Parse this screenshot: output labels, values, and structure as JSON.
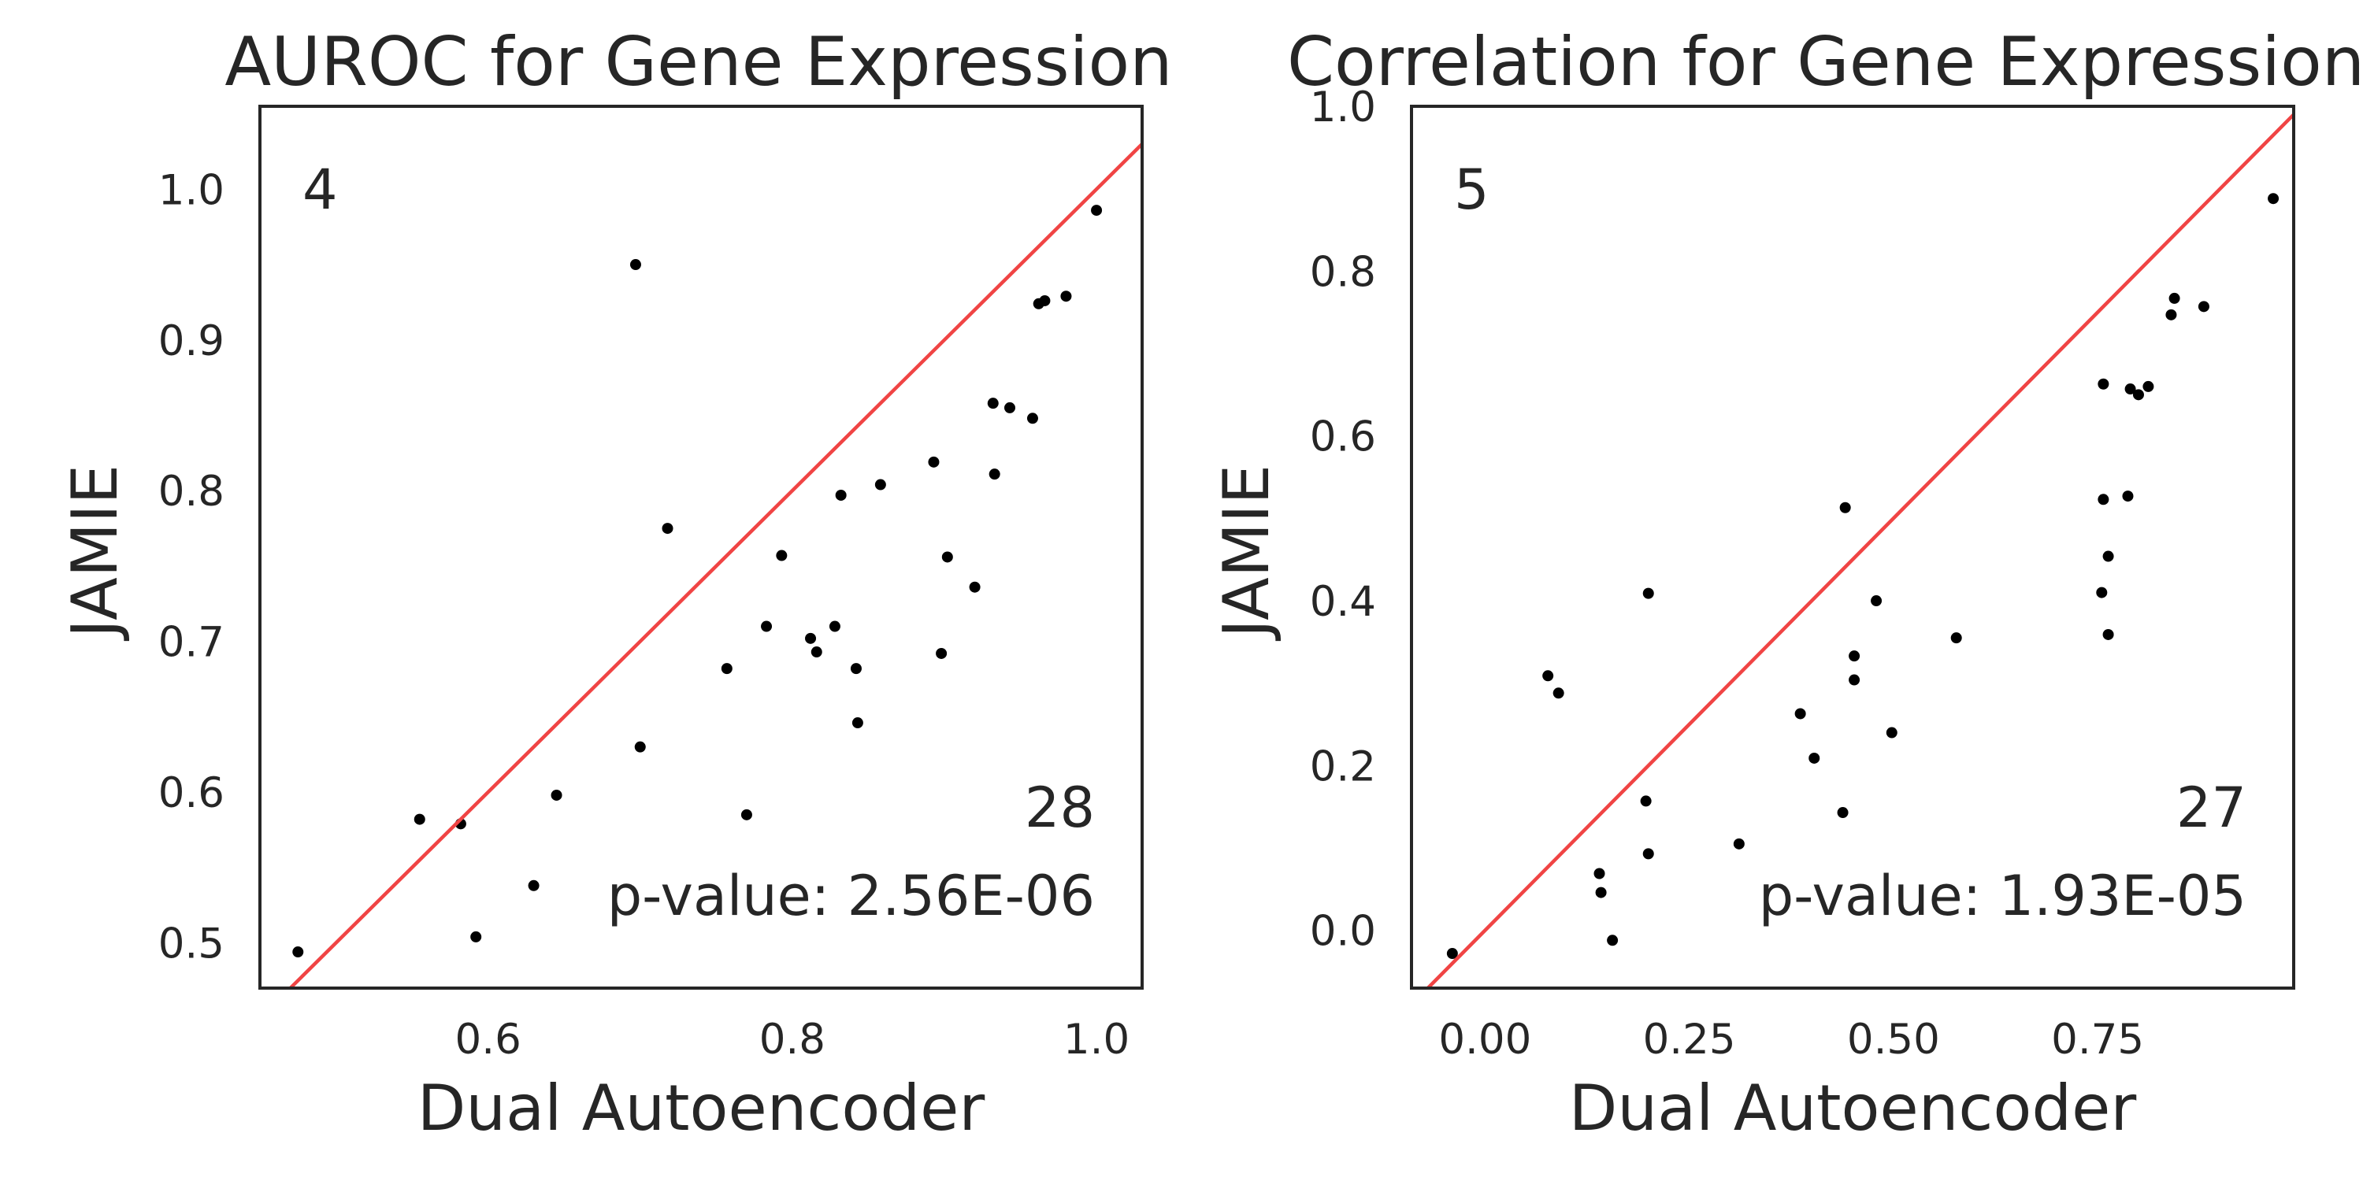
{
  "chart_data": [
    {
      "type": "scatter",
      "title": "AUROC for Gene Expression",
      "xlabel": "Dual Autoencoder",
      "ylabel": "JAMIE",
      "xlim": [
        0.45,
        1.03
      ],
      "ylim": [
        0.47,
        1.055
      ],
      "xticks": [
        0.6,
        0.8,
        1.0
      ],
      "xtick_labels": [
        "0.6",
        "0.8",
        "1.0"
      ],
      "yticks": [
        0.5,
        0.6,
        0.7,
        0.8,
        0.9,
        1.0
      ],
      "ytick_labels": [
        "0.5",
        "0.6",
        "0.7",
        "0.8",
        "0.9",
        "1.0"
      ],
      "diagonal_color": "#f04444",
      "point_color": "#000000",
      "grid": false,
      "count_above": "4",
      "count_below": "28",
      "p_value": "p-value: 2.56E-06",
      "points": [
        {
          "x": 0.475,
          "y": 0.494
        },
        {
          "x": 0.555,
          "y": 0.582
        },
        {
          "x": 0.582,
          "y": 0.579
        },
        {
          "x": 0.592,
          "y": 0.504
        },
        {
          "x": 0.63,
          "y": 0.538
        },
        {
          "x": 0.645,
          "y": 0.598
        },
        {
          "x": 0.697,
          "y": 0.95
        },
        {
          "x": 0.7,
          "y": 0.63
        },
        {
          "x": 0.718,
          "y": 0.775
        },
        {
          "x": 0.757,
          "y": 0.682
        },
        {
          "x": 0.77,
          "y": 0.585
        },
        {
          "x": 0.783,
          "y": 0.71
        },
        {
          "x": 0.793,
          "y": 0.757
        },
        {
          "x": 0.812,
          "y": 0.702
        },
        {
          "x": 0.816,
          "y": 0.693
        },
        {
          "x": 0.828,
          "y": 0.71
        },
        {
          "x": 0.832,
          "y": 0.797
        },
        {
          "x": 0.842,
          "y": 0.682
        },
        {
          "x": 0.843,
          "y": 0.646
        },
        {
          "x": 0.858,
          "y": 0.804
        },
        {
          "x": 0.893,
          "y": 0.819
        },
        {
          "x": 0.898,
          "y": 0.692
        },
        {
          "x": 0.902,
          "y": 0.756
        },
        {
          "x": 0.92,
          "y": 0.736
        },
        {
          "x": 0.932,
          "y": 0.858
        },
        {
          "x": 0.933,
          "y": 0.811
        },
        {
          "x": 0.943,
          "y": 0.855
        },
        {
          "x": 0.958,
          "y": 0.848
        },
        {
          "x": 0.962,
          "y": 0.924
        },
        {
          "x": 0.966,
          "y": 0.926
        },
        {
          "x": 0.98,
          "y": 0.929
        },
        {
          "x": 1.0,
          "y": 0.986
        }
      ]
    },
    {
      "type": "scatter",
      "title": "Correlation for Gene Expression",
      "xlabel": "Dual Autoencoder",
      "ylabel": "JAMIE",
      "xlim": [
        -0.09,
        0.99
      ],
      "ylim": [
        -0.07,
        1.0
      ],
      "xticks": [
        0.0,
        0.25,
        0.5,
        0.75
      ],
      "xtick_labels": [
        "0.00",
        "0.25",
        "0.50",
        "0.75"
      ],
      "yticks": [
        0.0,
        0.2,
        0.4,
        0.6,
        0.8,
        1.0
      ],
      "ytick_labels": [
        "0.0",
        "0.2",
        "0.4",
        "0.6",
        "0.8",
        "1.0"
      ],
      "diagonal_color": "#f04444",
      "point_color": "#000000",
      "grid": false,
      "count_above": "5",
      "count_below": "27",
      "p_value": "p-value: 1.93E-05",
      "points": [
        {
          "x": -0.04,
          "y": -0.028
        },
        {
          "x": 0.077,
          "y": 0.309
        },
        {
          "x": 0.09,
          "y": 0.288
        },
        {
          "x": 0.14,
          "y": 0.069
        },
        {
          "x": 0.142,
          "y": 0.046
        },
        {
          "x": 0.156,
          "y": -0.012
        },
        {
          "x": 0.197,
          "y": 0.157
        },
        {
          "x": 0.2,
          "y": 0.093
        },
        {
          "x": 0.2,
          "y": 0.409
        },
        {
          "x": 0.311,
          "y": 0.105
        },
        {
          "x": 0.386,
          "y": 0.263
        },
        {
          "x": 0.403,
          "y": 0.209
        },
        {
          "x": 0.438,
          "y": 0.143
        },
        {
          "x": 0.441,
          "y": 0.513
        },
        {
          "x": 0.452,
          "y": 0.333
        },
        {
          "x": 0.452,
          "y": 0.304
        },
        {
          "x": 0.479,
          "y": 0.4
        },
        {
          "x": 0.498,
          "y": 0.24
        },
        {
          "x": 0.577,
          "y": 0.355
        },
        {
          "x": 0.755,
          "y": 0.41
        },
        {
          "x": 0.757,
          "y": 0.663
        },
        {
          "x": 0.757,
          "y": 0.523
        },
        {
          "x": 0.763,
          "y": 0.454
        },
        {
          "x": 0.763,
          "y": 0.359
        },
        {
          "x": 0.787,
          "y": 0.527
        },
        {
          "x": 0.79,
          "y": 0.657
        },
        {
          "x": 0.8,
          "y": 0.65
        },
        {
          "x": 0.812,
          "y": 0.66
        },
        {
          "x": 0.84,
          "y": 0.747
        },
        {
          "x": 0.844,
          "y": 0.767
        },
        {
          "x": 0.88,
          "y": 0.757
        },
        {
          "x": 0.965,
          "y": 0.888
        }
      ]
    }
  ]
}
